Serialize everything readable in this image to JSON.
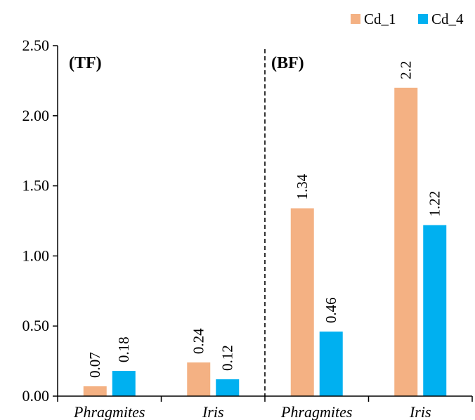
{
  "chart_data": {
    "type": "bar",
    "categories": [
      "Phragmites",
      "Iris",
      "Phragmites",
      "Iris"
    ],
    "panels": [
      {
        "label": "(TF)",
        "categories": [
          "Phragmites",
          "Iris"
        ]
      },
      {
        "label": "(BF)",
        "categories": [
          "Phragmites",
          "Iris"
        ]
      }
    ],
    "series": [
      {
        "name": "Cd_1",
        "color": "#F4B183",
        "values": [
          0.07,
          0.24,
          1.34,
          2.2
        ],
        "labels": [
          "0.07",
          "0.24",
          "1.34",
          "2.2"
        ]
      },
      {
        "name": "Cd_4",
        "color": "#00B0F0",
        "values": [
          0.18,
          0.12,
          0.46,
          1.22
        ],
        "labels": [
          "0.18",
          "0.12",
          "0.46",
          "1.22"
        ]
      }
    ],
    "yticks": [
      "0.00",
      "0.50",
      "1.00",
      "1.50",
      "2.00",
      "2.50"
    ],
    "ylim": [
      0,
      2.5
    ],
    "legend_position": "top-right",
    "grid": false,
    "title": "",
    "xlabel": "",
    "ylabel": ""
  }
}
